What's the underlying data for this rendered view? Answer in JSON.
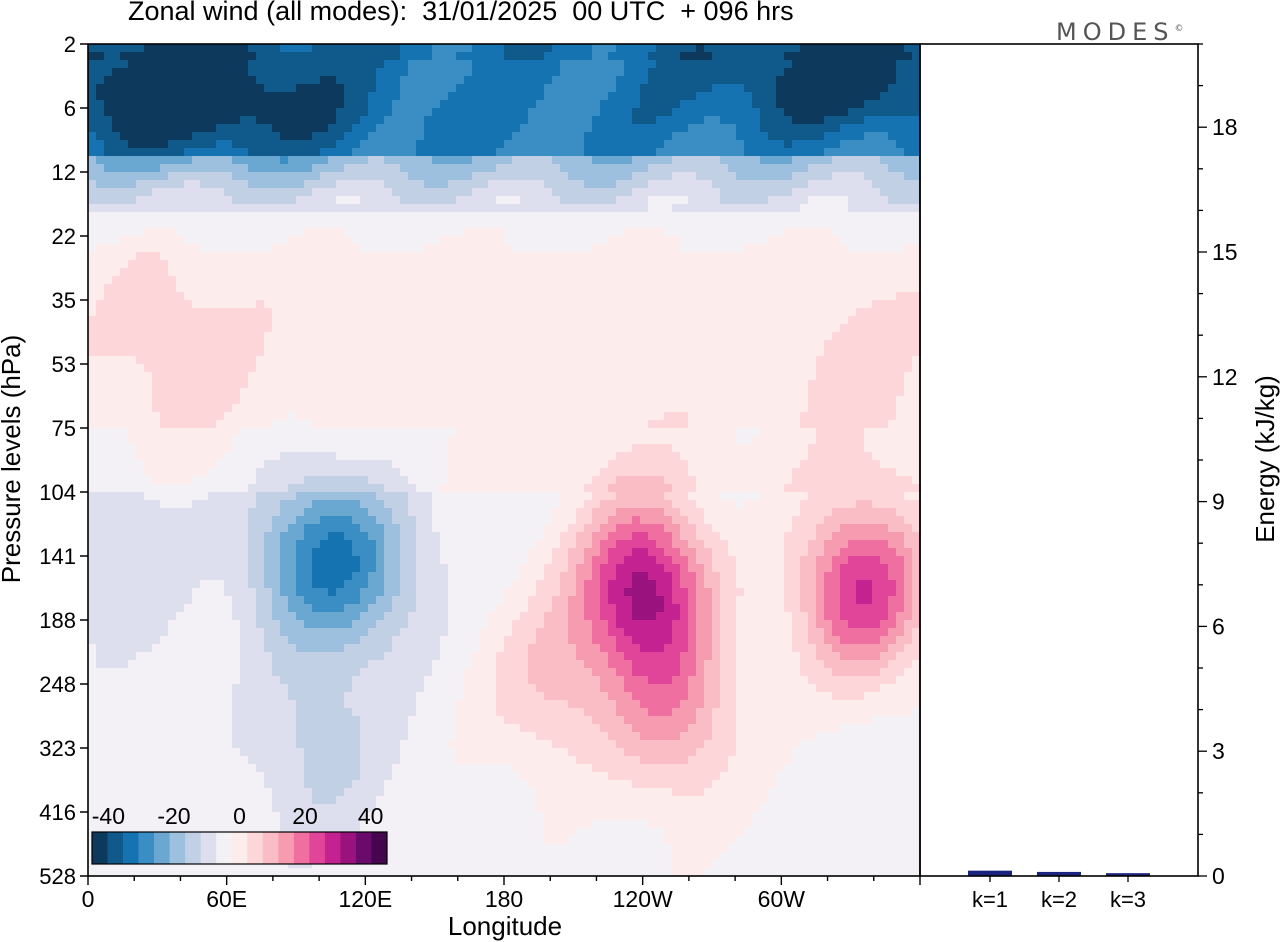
{
  "title": "Zonal wind (all modes):  31/01/2025  00 UTC  + 096 hrs",
  "brand": "MODES",
  "brand_mark": "©",
  "chart_data": [
    {
      "type": "heatmap",
      "title": "Zonal wind (all modes):  31/01/2025  00 UTC  + 096 hrs",
      "xlabel": "Longitude",
      "ylabel": "Pressure levels (hPa)",
      "x_ticks": [
        "0",
        "60E",
        "120E",
        "180",
        "120W",
        "60W"
      ],
      "x_tick_lon": [
        0,
        60,
        120,
        180,
        240,
        300
      ],
      "x_range_lon": [
        0,
        360
      ],
      "y_ticks": [
        "2",
        "6",
        "12",
        "22",
        "35",
        "53",
        "75",
        "104",
        "141",
        "188",
        "248",
        "323",
        "416",
        "528"
      ],
      "y_axis": "pressure, top 2 hPa to bottom 528 hPa, irregular levels",
      "colorbar": {
        "labels": [
          "-40",
          "-20",
          "0",
          "20",
          "40"
        ],
        "label_values": [
          -40,
          -20,
          0,
          20,
          40
        ],
        "range": [
          -45,
          45
        ],
        "colors": [
          "#0d3a5c",
          "#0f5a8a",
          "#1673b2",
          "#3b8ec4",
          "#6aa8d2",
          "#9dc0de",
          "#c2d0e6",
          "#dddfee",
          "#f3f1f6",
          "#fdecec",
          "#fcd6d9",
          "#fabcc5",
          "#f79bb0",
          "#ef6fa0",
          "#e0459a",
          "#c42290",
          "#99127d",
          "#6a0a6a",
          "#45064f"
        ]
      },
      "field_levels": [
        -40,
        -35,
        -30,
        -25,
        -20,
        -15,
        -10,
        -5,
        0,
        5,
        10,
        15,
        20,
        25,
        30,
        35,
        40
      ],
      "field_features": [
        {
          "lon": 30,
          "level_index": 0.6,
          "value": -42
        },
        {
          "lon": 330,
          "level_index": 0.6,
          "value": -44
        },
        {
          "lon": 60,
          "level_index": 1.2,
          "value": -37
        },
        {
          "lon": 200,
          "level_index": 1.5,
          "value": -30
        },
        {
          "lon": 40,
          "level_index": 4.8,
          "value": 8
        },
        {
          "lon": 330,
          "level_index": 5.0,
          "value": 7
        },
        {
          "lon": 95,
          "level_index": 8.0,
          "value": -22
        },
        {
          "lon": 120,
          "level_index": 8.2,
          "value": -18
        },
        {
          "lon": 15,
          "level_index": 8.0,
          "value": -10
        },
        {
          "lon": 240,
          "level_index": 8.5,
          "value": 36
        },
        {
          "lon": 335,
          "level_index": 8.5,
          "value": 30
        },
        {
          "lon": 255,
          "level_index": 10.5,
          "value": 15
        },
        {
          "lon": 200,
          "level_index": 10.0,
          "value": 10
        },
        {
          "lon": 100,
          "level_index": 11.0,
          "value": -12
        }
      ]
    },
    {
      "type": "bar",
      "ylabel": "Energy (kJ/kg)",
      "categories": [
        "k=1",
        "k=2",
        "k=3"
      ],
      "values": [
        0.08,
        0.05,
        0.02
      ],
      "ylim": [
        0,
        20
      ],
      "y_ticks": [
        "0",
        "3",
        "6",
        "9",
        "12",
        "15",
        "18"
      ],
      "y_tick_values": [
        0,
        3,
        6,
        9,
        12,
        15,
        18
      ],
      "bar_colors": [
        "#1a237e",
        "#1a237e",
        "#1a237e"
      ]
    }
  ]
}
